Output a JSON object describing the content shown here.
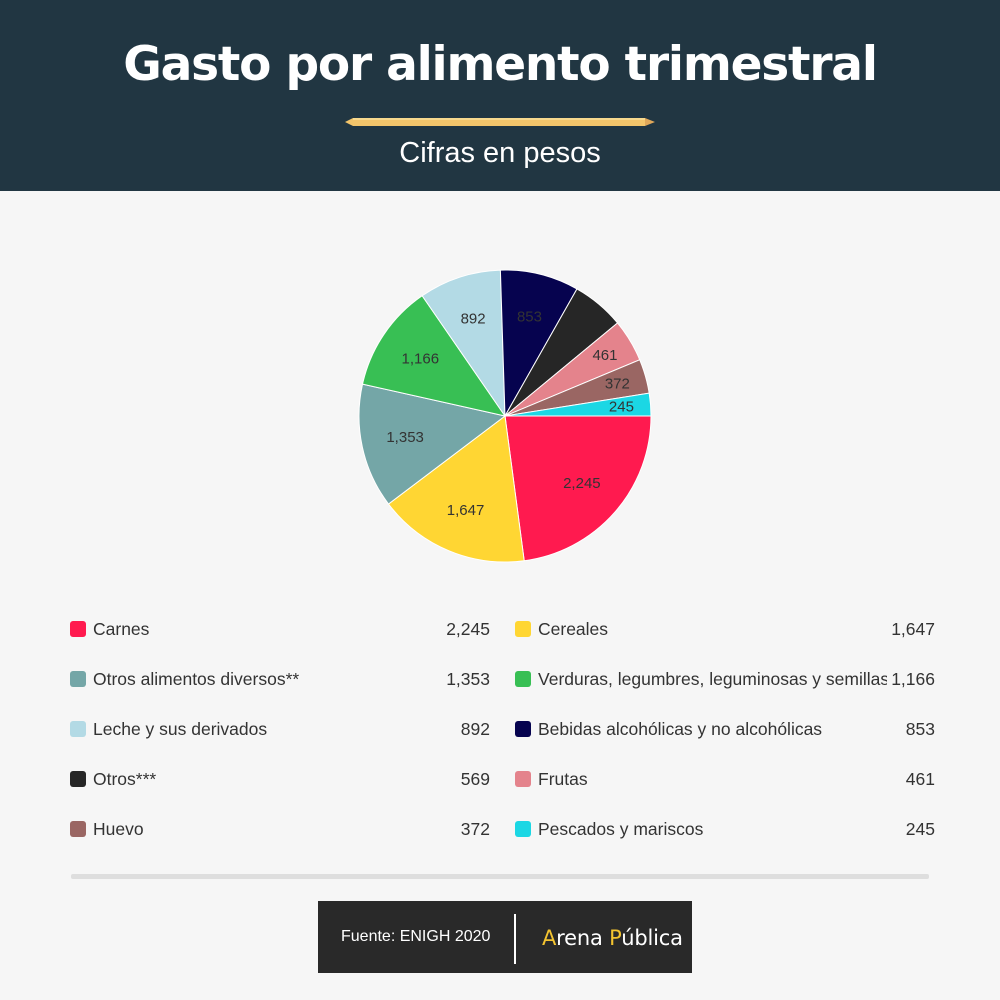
{
  "header": {
    "title": "Gasto por alimento trimestral",
    "subtitle": "Cifras en pesos"
  },
  "chart_data": {
    "type": "pie",
    "title": "Gasto por alimento trimestral",
    "subtitle": "Cifras en pesos",
    "legend_position": "bottom",
    "categories": [
      "Carnes",
      "Cereales",
      "Otros alimentos diversos**",
      "Verduras, legumbres, leguminosas y semillas",
      "Leche y sus derivados",
      "Bebidas alcohólicas y no alcohólicas",
      "Otros***",
      "Frutas",
      "Huevo",
      "Pescados y mariscos"
    ],
    "values": [
      2245,
      1647,
      1353,
      1166,
      892,
      853,
      569,
      461,
      372,
      245
    ],
    "value_labels": [
      "2,245",
      "1,647",
      "1,353",
      "1,166",
      "892",
      "853",
      "569",
      "461",
      "372",
      "245"
    ],
    "colors": [
      "#ff1a4f",
      "#ffd633",
      "#74a6a7",
      "#38bf54",
      "#b3dae5",
      "#06034f",
      "#262626",
      "#e4838c",
      "#9a6663",
      "#1bd7e4"
    ],
    "slice_label_colors": [
      "#333333",
      "#333333",
      "#333333",
      "#333333",
      "#333333",
      "#333333",
      "#333333",
      "#333333",
      "#333333",
      "#333333"
    ],
    "show_slice_label": [
      true,
      true,
      true,
      true,
      true,
      true,
      false,
      true,
      true,
      true
    ]
  },
  "footer": {
    "source": "Fuente: ENIGH 2020",
    "brand_a": "A",
    "brand_rena": "rena ",
    "brand_p": "P",
    "brand_ublica": "ública"
  }
}
